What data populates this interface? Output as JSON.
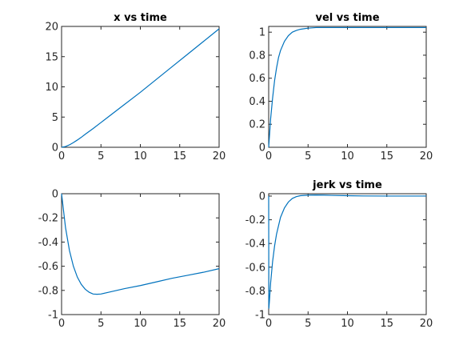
{
  "chart_data": [
    {
      "type": "line",
      "title": "x vs time",
      "xlabel": "",
      "ylabel": "",
      "xlim": [
        0,
        20
      ],
      "ylim": [
        0,
        20
      ],
      "xticks": [
        0,
        5,
        10,
        15,
        20
      ],
      "yticks": [
        0,
        5,
        10,
        15,
        20
      ],
      "xtick_labels": [
        "0",
        "5",
        "10",
        "15",
        "20"
      ],
      "ytick_labels": [
        "0",
        "5",
        "10",
        "15",
        "20"
      ],
      "grid": false,
      "series": [
        {
          "color": "#0072bd",
          "x": [
            0,
            0.5,
            1,
            1.5,
            2,
            2.5,
            3,
            4,
            5,
            6,
            8,
            10,
            12,
            14,
            16,
            18,
            20
          ],
          "y": [
            0,
            0.12,
            0.4,
            0.78,
            1.2,
            1.65,
            2.15,
            3.1,
            4.1,
            5.1,
            7.1,
            9.1,
            11.2,
            13.3,
            15.4,
            17.5,
            19.6
          ]
        }
      ]
    },
    {
      "type": "line",
      "title": "vel vs time",
      "xlabel": "",
      "ylabel": "",
      "xlim": [
        0,
        20
      ],
      "ylim": [
        0,
        1.05
      ],
      "xticks": [
        0,
        5,
        10,
        15,
        20
      ],
      "yticks": [
        0,
        0.2,
        0.4,
        0.6,
        0.8,
        1
      ],
      "xtick_labels": [
        "0",
        "5",
        "10",
        "15",
        "20"
      ],
      "ytick_labels": [
        "0",
        "0.2",
        "0.4",
        "0.6",
        "0.8",
        "1"
      ],
      "grid": false,
      "series": [
        {
          "color": "#0072bd",
          "x": [
            0,
            0.25,
            0.5,
            0.75,
            1,
            1.25,
            1.5,
            2,
            2.5,
            3,
            3.5,
            4,
            5,
            6,
            7,
            8,
            10,
            12,
            15,
            20
          ],
          "y": [
            0,
            0.25,
            0.43,
            0.58,
            0.69,
            0.78,
            0.84,
            0.92,
            0.97,
            1.0,
            1.015,
            1.025,
            1.035,
            1.04,
            1.04,
            1.04,
            1.04,
            1.04,
            1.04,
            1.04
          ]
        }
      ]
    },
    {
      "type": "line",
      "title": "",
      "xlabel": "",
      "ylabel": "",
      "xlim": [
        0,
        20
      ],
      "ylim": [
        -1,
        0
      ],
      "xticks": [
        0,
        5,
        10,
        15,
        20
      ],
      "yticks": [
        -1,
        -0.8,
        -0.6,
        -0.4,
        -0.2,
        0
      ],
      "xtick_labels": [
        "0",
        "5",
        "10",
        "15",
        "20"
      ],
      "ytick_labels": [
        "-1",
        "-0.8",
        "-0.6",
        "-0.4",
        "-0.2",
        "0"
      ],
      "grid": false,
      "series": [
        {
          "color": "#0072bd",
          "x": [
            0,
            0.5,
            1,
            1.5,
            2,
            2.5,
            3,
            3.5,
            4,
            4.5,
            5,
            6,
            7,
            8,
            10,
            12,
            14,
            16,
            18,
            20
          ],
          "y": [
            0,
            -0.28,
            -0.47,
            -0.6,
            -0.69,
            -0.75,
            -0.79,
            -0.815,
            -0.83,
            -0.832,
            -0.83,
            -0.815,
            -0.8,
            -0.785,
            -0.76,
            -0.73,
            -0.7,
            -0.675,
            -0.65,
            -0.62
          ]
        }
      ]
    },
    {
      "type": "line",
      "title": "jerk vs time",
      "xlabel": "",
      "ylabel": "",
      "xlim": [
        0,
        20
      ],
      "ylim": [
        -1,
        0.02
      ],
      "xticks": [
        0,
        5,
        10,
        15,
        20
      ],
      "yticks": [
        -1,
        -0.8,
        -0.6,
        -0.4,
        -0.2,
        0
      ],
      "xtick_labels": [
        "0",
        "5",
        "10",
        "15",
        "20"
      ],
      "ytick_labels": [
        "-1",
        "-0.8",
        "-0.6",
        "-0.4",
        "-0.2",
        "0"
      ],
      "grid": false,
      "series": [
        {
          "color": "#0072bd",
          "x": [
            0,
            0.02,
            0.1,
            0.25,
            0.5,
            0.75,
            1,
            1.5,
            2,
            2.5,
            3,
            3.5,
            4,
            5,
            6,
            7,
            8,
            10,
            12,
            15,
            20
          ],
          "y": [
            0,
            -0.95,
            -0.88,
            -0.73,
            -0.55,
            -0.42,
            -0.32,
            -0.18,
            -0.1,
            -0.05,
            -0.02,
            -0.005,
            0.003,
            0.008,
            0.009,
            0.008,
            0.006,
            0.003,
            0.001,
            0,
            0
          ]
        }
      ]
    }
  ]
}
